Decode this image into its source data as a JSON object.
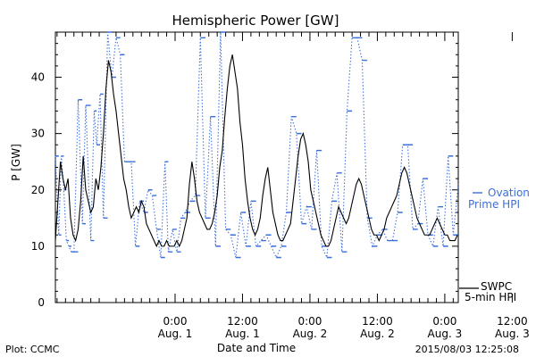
{
  "colors": {
    "background": "#ffffff",
    "axis": "#000000",
    "ovation": "#3b6fd8",
    "swpc": "#000000",
    "text": "#000000"
  },
  "chart_data": {
    "type": "line",
    "title": "Hemispheric Power [GW]",
    "xlabel": "Date and Time",
    "ylabel": "P [GW]",
    "ylim": [
      0,
      48
    ],
    "xlim": [
      -14.2,
      33.6
    ],
    "xunit": "hours relative to 2015-08-01 00:00 UT",
    "grid": false,
    "legend_placement": "right",
    "y_ticks": [
      0,
      10,
      20,
      30,
      40
    ],
    "x_ticks": [
      {
        "x": 0,
        "time": "0:00",
        "date": "Aug. 1"
      },
      {
        "x": 8,
        "time": "12:00",
        "date": "Aug. 1"
      },
      {
        "x": 16,
        "time": "0:00",
        "date": "Aug. 2"
      },
      {
        "x": 24,
        "time": "12:00",
        "date": "Aug. 2"
      },
      {
        "x": 32,
        "time": "0:00",
        "date": "Aug. 3"
      },
      {
        "x": 40,
        "time": "12:00",
        "date": "Aug. 3"
      }
    ],
    "series": [
      {
        "name": "Ovation Prime HPI",
        "style": "dotted-step",
        "color": "#3b6fd8",
        "x": [
          -14.2,
          -13.8,
          -13.5,
          -13.2,
          -12.9,
          -12.6,
          -12.3,
          -12.0,
          -11.5,
          -11.0,
          -10.6,
          -10.0,
          -9.6,
          -9.3,
          -8.9,
          -8.5,
          -8.0,
          -7.5,
          -7.0,
          -6.5,
          -6.0,
          -5.6,
          -5.2,
          -4.7,
          -4.2,
          -3.7,
          -3.2,
          -2.7,
          -2.2,
          -1.7,
          -1.2,
          -0.8,
          -0.3,
          0.2,
          0.7,
          1.2,
          1.8,
          2.4,
          3.0,
          3.6,
          4.2,
          4.8,
          5.4,
          6.0,
          6.6,
          7.2,
          7.8,
          8.4,
          9.0,
          9.6,
          10.2,
          10.8,
          11.4,
          12.0,
          12.6,
          13.2,
          13.8,
          14.4,
          15.0,
          15.6,
          16.2,
          16.8,
          17.4,
          18.0,
          18.6,
          19.2,
          19.8,
          20.4,
          21.0,
          21.6,
          22.2,
          22.8,
          23.4,
          24.0,
          24.6,
          25.2,
          25.8,
          26.4,
          27.0,
          27.6,
          28.2,
          28.8,
          29.4,
          30.0,
          30.6,
          31.2,
          31.8,
          32.4,
          33.0,
          33.6
        ],
        "values": [
          26,
          12,
          26,
          20,
          11,
          10,
          9,
          9,
          36,
          14,
          35,
          11,
          34,
          28,
          37,
          15,
          48,
          40,
          47,
          44,
          25,
          25,
          25,
          10,
          18,
          16,
          20,
          19,
          13,
          8,
          25,
          9,
          13,
          9,
          15,
          16,
          18,
          19,
          47,
          15,
          33,
          10,
          48,
          13,
          12,
          8,
          16,
          10,
          18,
          10,
          11,
          12,
          10,
          8,
          10,
          16,
          33,
          30,
          14,
          17,
          13,
          27,
          10,
          8,
          18,
          23,
          9,
          34,
          47,
          47,
          43,
          15,
          10,
          12,
          13,
          11,
          11,
          16,
          28,
          28,
          13,
          14,
          22,
          12,
          10,
          17,
          10,
          26,
          12,
          21
        ]
      },
      {
        "name": "SWPC 5-min HPI",
        "style": "solid",
        "color": "#000000",
        "x": [
          -14.2,
          -13.9,
          -13.6,
          -13.3,
          -13.0,
          -12.7,
          -12.4,
          -12.1,
          -11.8,
          -11.5,
          -11.2,
          -10.9,
          -10.6,
          -10.3,
          -10.0,
          -9.7,
          -9.4,
          -9.1,
          -8.8,
          -8.5,
          -8.2,
          -7.9,
          -7.6,
          -7.3,
          -7.0,
          -6.7,
          -6.4,
          -6.1,
          -5.8,
          -5.5,
          -5.2,
          -4.9,
          -4.6,
          -4.3,
          -4.0,
          -3.7,
          -3.4,
          -3.1,
          -2.8,
          -2.5,
          -2.2,
          -1.9,
          -1.6,
          -1.3,
          -1.0,
          -0.7,
          -0.4,
          -0.1,
          0.2,
          0.5,
          0.8,
          1.1,
          1.4,
          1.7,
          2.0,
          2.3,
          2.6,
          2.9,
          3.2,
          3.5,
          3.8,
          4.1,
          4.4,
          4.7,
          5.0,
          5.3,
          5.6,
          5.9,
          6.2,
          6.5,
          6.8,
          7.1,
          7.4,
          7.7,
          8.0,
          8.3,
          8.6,
          8.9,
          9.2,
          9.5,
          9.8,
          10.1,
          10.4,
          10.7,
          11.0,
          11.3,
          11.6,
          11.9,
          12.2,
          12.5,
          12.8,
          13.1,
          13.4,
          13.7,
          14.0,
          14.3,
          14.6,
          14.9,
          15.2,
          15.5,
          15.8,
          16.1,
          16.4,
          16.7,
          17.0,
          17.3,
          17.6,
          17.9,
          18.2,
          18.5,
          18.8,
          19.1,
          19.4,
          19.7,
          20.0,
          20.3,
          20.6,
          20.9,
          21.2,
          21.5,
          21.8,
          22.1,
          22.4,
          22.7,
          23.0,
          23.3,
          23.6,
          23.9,
          24.2,
          24.5,
          24.8,
          25.1,
          25.4,
          25.7,
          26.0,
          26.3,
          26.6,
          26.9,
          27.2,
          27.5,
          27.8,
          28.1,
          28.4,
          28.7,
          29.0,
          29.3,
          29.6,
          29.9,
          30.2,
          30.5,
          30.8,
          31.1,
          31.4,
          31.7,
          32.0,
          32.3,
          32.6,
          32.9,
          33.2,
          33.5
        ],
        "values": [
          11,
          18,
          25,
          22,
          20,
          22,
          15,
          12,
          11,
          13,
          18,
          26,
          20,
          18,
          16,
          17,
          22,
          20,
          24,
          30,
          38,
          43,
          41,
          37,
          34,
          30,
          26,
          22,
          20,
          17,
          15,
          16,
          17,
          16,
          18,
          17,
          14,
          13,
          12,
          11,
          10,
          11,
          10,
          10,
          11,
          10,
          10,
          10,
          11,
          10,
          11,
          13,
          15,
          21,
          25,
          22,
          18,
          16,
          15,
          14,
          13,
          13,
          14,
          16,
          19,
          24,
          27,
          33,
          38,
          42,
          44,
          41,
          38,
          32,
          28,
          22,
          18,
          15,
          13,
          12,
          13,
          15,
          19,
          22,
          24,
          20,
          16,
          14,
          12,
          11,
          11,
          12,
          13,
          14,
          18,
          22,
          26,
          29,
          30,
          28,
          25,
          20,
          18,
          16,
          14,
          12,
          11,
          10,
          10,
          11,
          13,
          15,
          17,
          16,
          15,
          14,
          15,
          17,
          19,
          21,
          22,
          21,
          19,
          17,
          15,
          13,
          12,
          12,
          11,
          12,
          13,
          15,
          16,
          17,
          18,
          19,
          21,
          23,
          24,
          23,
          21,
          19,
          17,
          15,
          14,
          13,
          12,
          12,
          12,
          13,
          14,
          15,
          14,
          13,
          12,
          12,
          11,
          11,
          11,
          12
        ]
      }
    ]
  },
  "legend": {
    "ovation_line1": "Ovation",
    "ovation_line2": "Prime HPI",
    "swpc_line1": "SWPC",
    "swpc_line2": "5-min HPI"
  },
  "footer": {
    "left": "Plot: CCMC",
    "right": "2015/08/03 12:25:08"
  }
}
